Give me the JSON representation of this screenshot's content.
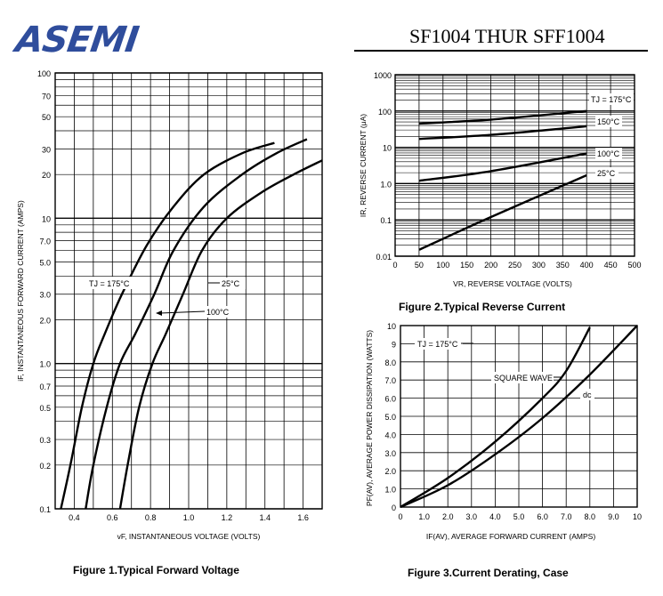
{
  "header": {
    "logo_text": "ASEMI",
    "part_number": "SF1004 THUR SFF1004",
    "colors": {
      "logo": "#2f4d9c",
      "ink": "#000000"
    }
  },
  "chart_data": [
    {
      "type": "line",
      "caption": "Figure 1.Typical Forward Voltage",
      "xlabel": "vF, INSTANTANEOUS VOLTAGE (VOLTS)",
      "ylabel": "iF, INSTANTANEOUS FORWARD CURRENT (AMPS)",
      "xlim": [
        0.3,
        1.7
      ],
      "ylim": [
        0.1,
        100
      ],
      "yscale": "log",
      "grid": true,
      "xticks": [
        0.4,
        0.6,
        0.8,
        1.0,
        1.2,
        1.4,
        1.6
      ],
      "xtick_labels": [
        "0.4",
        "0.6",
        "0.8",
        "1.0",
        "1.2",
        "1.4",
        "1.6"
      ],
      "ytick_labels": [
        "100",
        "70",
        "50",
        "30",
        "20",
        "10",
        "7.0",
        "5.0",
        "3.0",
        "2.0",
        "1.0",
        "0.7",
        "0.5",
        "0.3",
        "0.2",
        "0.1"
      ],
      "series": [
        {
          "name": "TJ = 175°C",
          "x": [
            0.33,
            0.38,
            0.44,
            0.5,
            0.56,
            0.65,
            0.78,
            0.92,
            1.08,
            1.28,
            1.45
          ],
          "y": [
            0.1,
            0.2,
            0.5,
            1.0,
            1.6,
            3.0,
            6.5,
            12,
            20,
            28,
            33
          ]
        },
        {
          "name": "100°C",
          "x": [
            0.46,
            0.5,
            0.57,
            0.64,
            0.72,
            0.82,
            0.92,
            1.08,
            1.28,
            1.46,
            1.62
          ],
          "y": [
            0.1,
            0.2,
            0.5,
            1.0,
            1.6,
            3.0,
            6.0,
            12,
            20,
            28,
            35
          ]
        },
        {
          "name": "25°C",
          "x": [
            0.64,
            0.68,
            0.74,
            0.81,
            0.88,
            0.97,
            1.07,
            1.2,
            1.38,
            1.55,
            1.7
          ],
          "y": [
            0.1,
            0.2,
            0.5,
            1.0,
            1.6,
            3.0,
            6.0,
            10,
            15,
            20,
            25
          ]
        }
      ],
      "annotations": [
        "TJ = 175°C",
        "100°C",
        "25°C"
      ]
    },
    {
      "type": "line",
      "caption": "Figure 2.Typical Reverse Current",
      "xlabel": "VR, REVERSE VOLTAGE (VOLTS)",
      "ylabel": "IR, REVERSE CURRENT (μA)",
      "xlim": [
        0,
        500
      ],
      "ylim": [
        0.01,
        1000
      ],
      "yscale": "log",
      "grid": true,
      "xticks": [
        0,
        50,
        100,
        150,
        200,
        250,
        300,
        350,
        400,
        450,
        500
      ],
      "xtick_labels": [
        "0",
        "50",
        "100",
        "150",
        "200",
        "250",
        "300",
        "350",
        "400",
        "450",
        "500"
      ],
      "ytick_labels": [
        "1000",
        "100",
        "10",
        "1.0",
        "0.1",
        "0.01"
      ],
      "series": [
        {
          "name": "TJ = 175°C",
          "x": [
            50,
            200,
            400
          ],
          "y": [
            45,
            58,
            100
          ]
        },
        {
          "name": "150°C",
          "x": [
            50,
            200,
            400
          ],
          "y": [
            17,
            22,
            38
          ]
        },
        {
          "name": "100°C",
          "x": [
            50,
            200,
            400
          ],
          "y": [
            1.2,
            2.2,
            6.8
          ]
        },
        {
          "name": "25°C",
          "x": [
            50,
            200,
            400
          ],
          "y": [
            0.015,
            0.12,
            1.7
          ]
        }
      ],
      "annotations": [
        "TJ = 175°C",
        "150°C",
        "100°C",
        "25°C"
      ]
    },
    {
      "type": "line",
      "caption": "Figure 3.Current Derating, Case",
      "xlabel": "IF(AV), AVERAGE FORWARD CURRENT (AMPS)",
      "ylabel": "PF(AV), AVERAGE POWER DISSIPATION (WATTS)",
      "xlim": [
        0,
        10
      ],
      "ylim": [
        0,
        10
      ],
      "grid": true,
      "xticks": [
        0,
        1,
        2,
        3,
        4,
        5,
        6,
        7,
        8,
        9,
        10
      ],
      "xtick_labels": [
        "0",
        "1.0",
        "2.0",
        "3.0",
        "4.0",
        "5.0",
        "6.0",
        "7.0",
        "8.0",
        "9.0",
        "10"
      ],
      "yticks": [
        0,
        1,
        2,
        3,
        4,
        5,
        6,
        7,
        8,
        9,
        10
      ],
      "ytick_labels": [
        "0",
        "1.0",
        "2.0",
        "3.0",
        "4.0",
        "5.0",
        "6.0",
        "7.0",
        "8.0",
        "9",
        "10"
      ],
      "series": [
        {
          "name": "SQUARE WAVE",
          "x": [
            0,
            2,
            4,
            6,
            7,
            8
          ],
          "y": [
            0,
            1.6,
            3.6,
            6.0,
            7.5,
            9.9
          ]
        },
        {
          "name": "dc",
          "x": [
            0,
            2,
            4,
            6,
            8,
            10
          ],
          "y": [
            0,
            1.2,
            2.9,
            4.9,
            7.3,
            10
          ]
        }
      ],
      "annotations": [
        "TJ = 175°C",
        "SQUARE WAVE",
        "dc"
      ]
    }
  ]
}
